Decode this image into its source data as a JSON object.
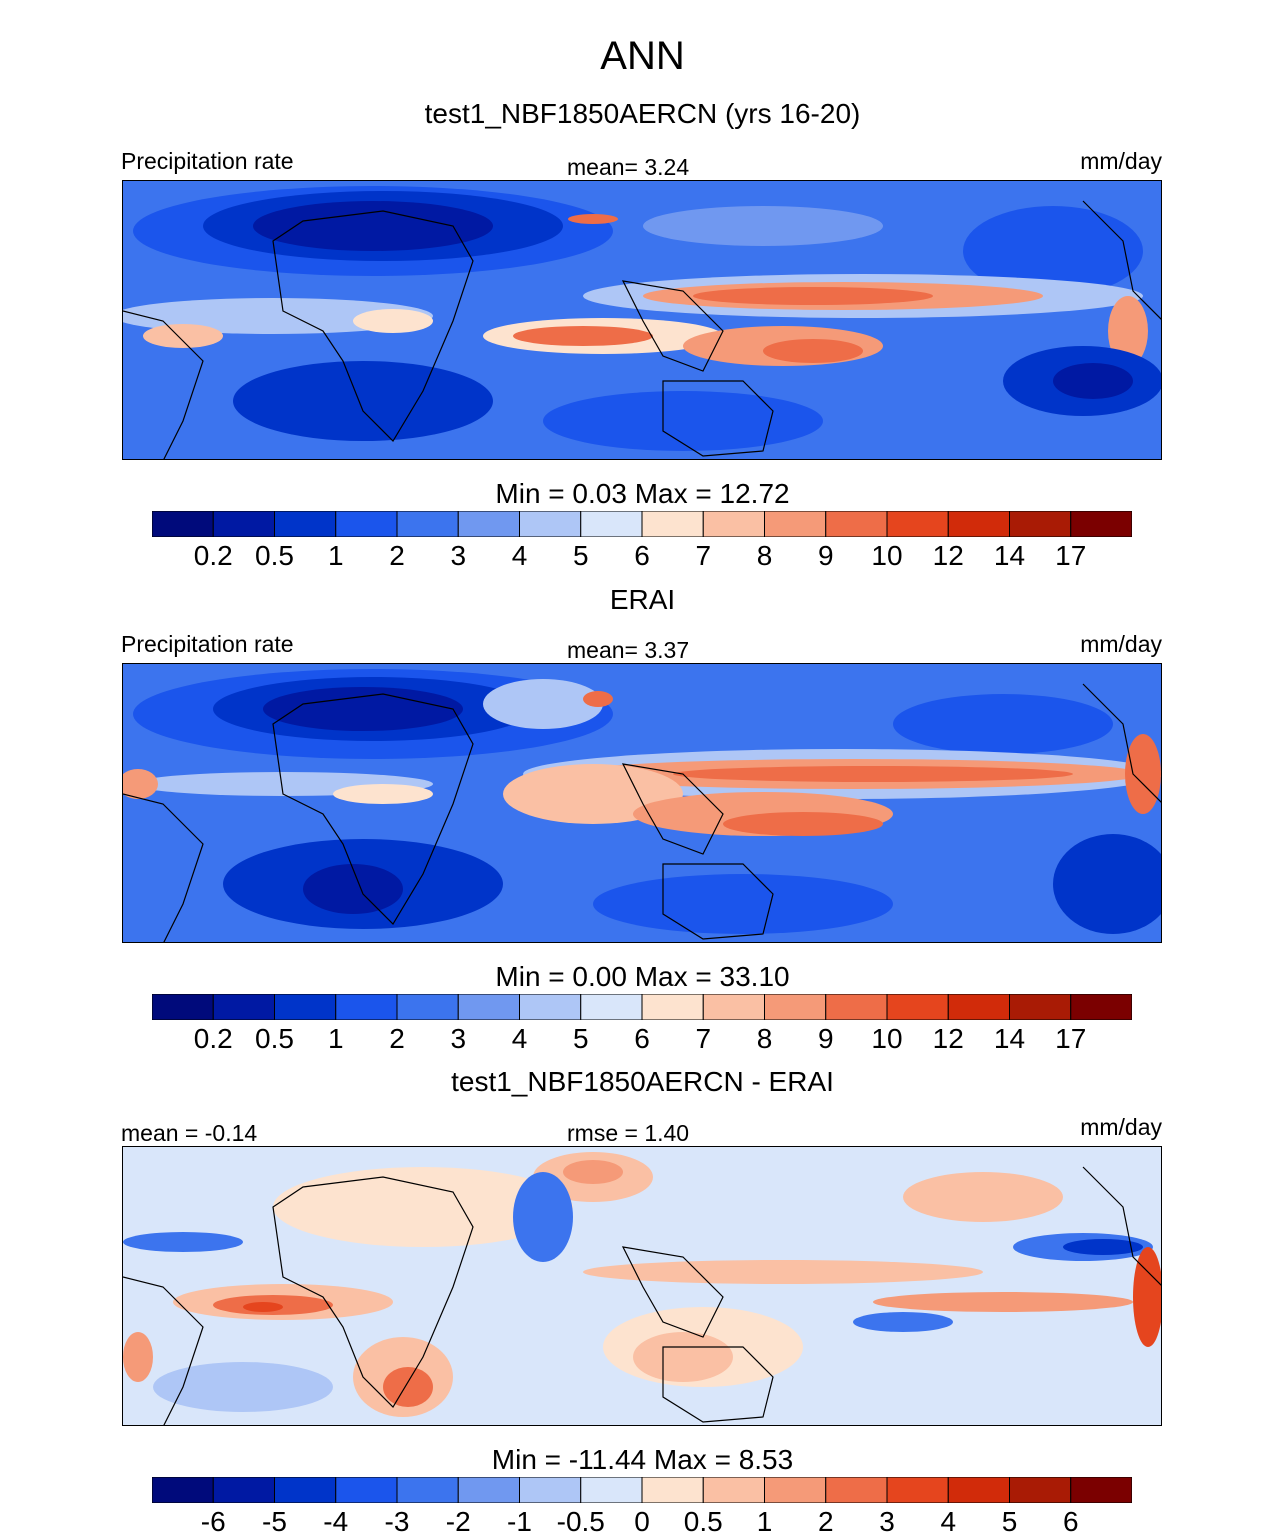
{
  "title": "ANN",
  "colors": {
    "levels": [
      "#000a7b",
      "#0019a3",
      "#0034c9",
      "#1b55ec",
      "#3c74ee",
      "#7098f0",
      "#aec6f6",
      "#d9e6fa",
      "#fde3cf",
      "#fac0a4",
      "#f59a78",
      "#ee6d48",
      "#e5451e",
      "#d12b0a",
      "#a91b05",
      "#7b0000"
    ]
  },
  "panels": [
    {
      "id": "model",
      "title": "test1_NBF1850AERCN (yrs 16-20)",
      "left_label": "Precipitation rate",
      "center_label": "mean=   3.24",
      "right_label": "mm/day",
      "minmax": "Min =   0.03 Max =  12.72",
      "ticks": [
        "0.2",
        "0.5",
        "1",
        "2",
        "3",
        "4",
        "5",
        "6",
        "7",
        "8",
        "9",
        "10",
        "12",
        "14",
        "17"
      ]
    },
    {
      "id": "obs",
      "title": "ERAI",
      "left_label": "Precipitation rate",
      "center_label": "mean=   3.37",
      "right_label": "mm/day",
      "minmax": "Min =   0.00 Max =  33.10",
      "ticks": [
        "0.2",
        "0.5",
        "1",
        "2",
        "3",
        "4",
        "5",
        "6",
        "7",
        "8",
        "9",
        "10",
        "12",
        "14",
        "17"
      ]
    },
    {
      "id": "diff",
      "title": "test1_NBF1850AERCN - ERAI",
      "left_label": "mean =  -0.14",
      "center_label": "rmse =   1.40",
      "right_label": "mm/day",
      "minmax": "Min = -11.44 Max =   8.53",
      "ticks": [
        "-6",
        "-5",
        "-4",
        "-3",
        "-2",
        "-1",
        "-0.5",
        "0",
        "0.5",
        "1",
        "2",
        "3",
        "4",
        "5",
        "6"
      ]
    }
  ],
  "chart_data": [
    {
      "type": "heatmap",
      "title": "test1_NBF1850AERCN (yrs 16-20)",
      "variable": "Precipitation rate",
      "units": "mm/day",
      "mean": 3.24,
      "min": 0.03,
      "max": 12.72,
      "levels": [
        0.2,
        0.5,
        1,
        2,
        3,
        4,
        5,
        6,
        7,
        8,
        9,
        10,
        12,
        14,
        17
      ]
    },
    {
      "type": "heatmap",
      "title": "ERAI",
      "variable": "Precipitation rate",
      "units": "mm/day",
      "mean": 3.37,
      "min": 0.0,
      "max": 33.1,
      "levels": [
        0.2,
        0.5,
        1,
        2,
        3,
        4,
        5,
        6,
        7,
        8,
        9,
        10,
        12,
        14,
        17
      ]
    },
    {
      "type": "heatmap",
      "title": "test1_NBF1850AERCN - ERAI",
      "units": "mm/day",
      "mean": -0.14,
      "rmse": 1.4,
      "min": -11.44,
      "max": 8.53,
      "levels": [
        -6,
        -5,
        -4,
        -3,
        -2,
        -1,
        -0.5,
        0,
        0.5,
        1,
        2,
        3,
        4,
        5,
        6
      ]
    }
  ]
}
